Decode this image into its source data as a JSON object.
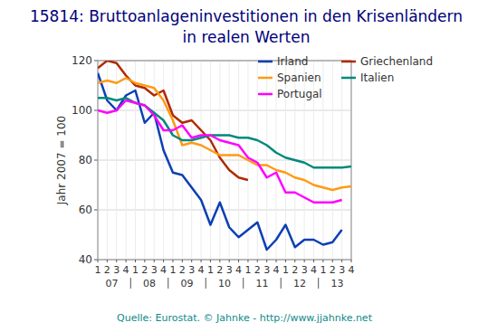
{
  "chart_data": {
    "type": "line",
    "title": "15814: Bruttoanlageninvestitionen in den Krisenländern",
    "subtitle": "in realen Werten",
    "y_label": "Jahr 2007 = 100",
    "source": "Quelle: Eurostat. © Jahnke - http://www.jjahnke.net",
    "categories": [
      "1",
      "2",
      "3",
      "4",
      "1",
      "2",
      "3",
      "4",
      "1",
      "2",
      "3",
      "4",
      "1",
      "2",
      "3",
      "4",
      "1",
      "2",
      "3",
      "4",
      "1",
      "2",
      "3",
      "4",
      "1",
      "2",
      "3",
      "4"
    ],
    "years": [
      "07",
      "08",
      "09",
      "10",
      "11",
      "12",
      "13"
    ],
    "ylim": [
      40,
      120
    ],
    "yticks": [
      40,
      60,
      80,
      100,
      120
    ],
    "grid": true,
    "legend": "top-right",
    "series": [
      {
        "name": "Irland",
        "color": "#0b3fb5",
        "values": [
          115,
          104,
          100,
          106,
          108,
          95,
          99,
          84,
          75,
          74,
          69,
          64,
          54,
          63,
          53,
          49,
          52,
          55,
          44,
          48,
          54,
          45,
          48,
          48,
          46,
          47,
          52,
          null
        ]
      },
      {
        "name": "Griechenland",
        "color": "#b02a00",
        "values": [
          117,
          120,
          119,
          114,
          110,
          109,
          106,
          108,
          98,
          95,
          96,
          92,
          88,
          81,
          76,
          73,
          72,
          null,
          null,
          null,
          null,
          null,
          null,
          null,
          null,
          null,
          null,
          null
        ]
      },
      {
        "name": "Spanien",
        "color": "#ff9a14",
        "values": [
          111,
          112,
          111,
          113,
          111,
          110,
          109,
          104,
          96,
          86,
          87,
          86,
          84,
          82,
          82,
          82,
          80,
          78,
          78,
          76,
          75,
          73,
          72,
          70,
          69,
          68,
          69,
          69.5
        ]
      },
      {
        "name": "Italien",
        "color": "#00897b",
        "values": [
          105,
          105,
          104,
          105,
          103,
          102,
          99,
          96,
          90,
          88,
          88,
          89,
          90,
          90,
          90,
          89,
          89,
          88,
          86,
          83,
          81,
          80,
          79,
          77,
          77,
          77,
          77,
          77.5
        ]
      },
      {
        "name": "Portugal",
        "color": "#ff00ff",
        "values": [
          100,
          99,
          100,
          104,
          103,
          102,
          98,
          92,
          92,
          94,
          89,
          90,
          90,
          88,
          87,
          86,
          81,
          79,
          73,
          75,
          67,
          67,
          65,
          63,
          63,
          63,
          64,
          null
        ]
      }
    ]
  }
}
